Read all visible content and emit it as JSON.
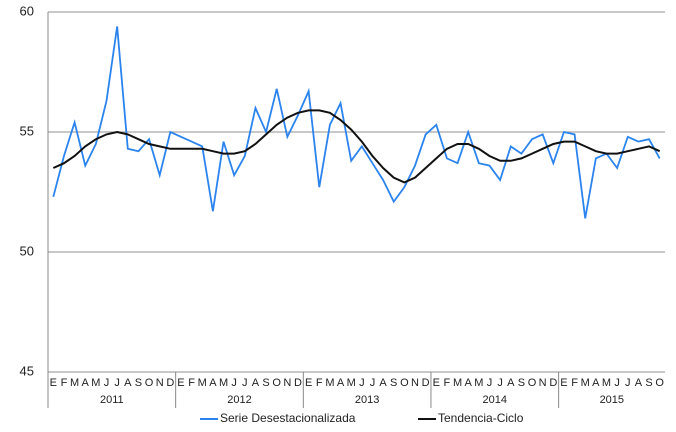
{
  "chart_data": {
    "type": "line",
    "categories": [
      "E",
      "F",
      "M",
      "A",
      "M",
      "J",
      "J",
      "A",
      "S",
      "O",
      "N",
      "D",
      "E",
      "F",
      "M",
      "A",
      "M",
      "J",
      "J",
      "A",
      "S",
      "O",
      "N",
      "D",
      "E",
      "F",
      "M",
      "A",
      "M",
      "J",
      "J",
      "A",
      "S",
      "O",
      "N",
      "D",
      "E",
      "F",
      "M",
      "A",
      "M",
      "J",
      "J",
      "A",
      "S",
      "O",
      "N",
      "D",
      "E",
      "F",
      "M",
      "A",
      "M",
      "J",
      "J",
      "A",
      "S",
      "O"
    ],
    "years": [
      "2011",
      "2012",
      "2013",
      "2014",
      "2015"
    ],
    "series": [
      {
        "name": "Serie Desestacionalizada",
        "color": "#2b84ee",
        "values": [
          52.3,
          54.0,
          55.4,
          53.6,
          54.5,
          56.3,
          59.4,
          54.3,
          54.2,
          54.7,
          53.2,
          55.0,
          54.8,
          54.6,
          54.4,
          51.7,
          54.6,
          53.2,
          54.0,
          56.0,
          55.0,
          56.8,
          54.8,
          55.7,
          56.7,
          52.7,
          55.3,
          56.2,
          53.8,
          54.4,
          53.7,
          53.0,
          52.1,
          52.7,
          53.6,
          54.9,
          55.3,
          53.9,
          53.7,
          55.0,
          53.7,
          53.6,
          53.0,
          54.4,
          54.1,
          54.7,
          54.9,
          53.7,
          55.0,
          54.9,
          51.4,
          53.9,
          54.1,
          53.5,
          54.8,
          54.6,
          54.7,
          53.9
        ]
      },
      {
        "name": "Tendencia-Ciclo",
        "color": "#111111",
        "values": [
          53.5,
          53.7,
          54.0,
          54.4,
          54.7,
          54.9,
          55.0,
          54.9,
          54.7,
          54.5,
          54.4,
          54.3,
          54.3,
          54.3,
          54.3,
          54.2,
          54.1,
          54.1,
          54.2,
          54.5,
          54.9,
          55.3,
          55.6,
          55.8,
          55.9,
          55.9,
          55.8,
          55.5,
          55.1,
          54.6,
          54.0,
          53.5,
          53.1,
          52.9,
          53.1,
          53.5,
          53.9,
          54.3,
          54.5,
          54.5,
          54.3,
          54.0,
          53.8,
          53.8,
          53.9,
          54.1,
          54.3,
          54.5,
          54.6,
          54.6,
          54.4,
          54.2,
          54.1,
          54.1,
          54.2,
          54.3,
          54.4,
          54.2
        ]
      }
    ],
    "ylim": [
      45,
      60
    ],
    "yticks": [
      45,
      50,
      55,
      60
    ],
    "grid": true
  }
}
